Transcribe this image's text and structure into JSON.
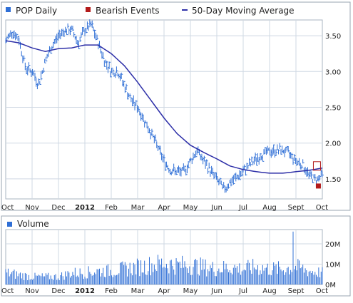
{
  "chart_data": [
    {
      "type": "line",
      "panel": "price",
      "legend": [
        {
          "label": "POP Daily",
          "marker": "square",
          "color": "#2f6fd6"
        },
        {
          "label": "Bearish Events",
          "marker": "square",
          "color": "#b31b1b"
        },
        {
          "label": "50-Day Moving Average",
          "marker": "line",
          "color": "#2d2fa8"
        }
      ],
      "x_tick_labels": [
        "Oct",
        "Nov",
        "Dec",
        "2012",
        "Feb",
        "Mar",
        "Apr",
        "May",
        "Jun",
        "Jul",
        "Aug",
        "Sept",
        "Oct"
      ],
      "y_tick_labels": [
        "1.50",
        "2.00",
        "2.50",
        "3.00",
        "3.50"
      ],
      "ylim": [
        1.22,
        3.72
      ],
      "grid": true,
      "colors": {
        "price": "#2f6fd6",
        "moving_average": "#2d2fa8",
        "bearish": "#b31b1b",
        "grid": "#cfd8e3"
      },
      "series": [
        {
          "name": "POP Daily",
          "style": "ohlc-bars",
          "x": [
            0,
            0.25,
            0.5,
            0.75,
            1,
            1.25,
            1.5,
            1.75,
            2,
            2.25,
            2.5,
            2.75,
            3,
            3.25,
            3.5,
            3.75,
            4,
            4.25,
            4.5,
            4.75,
            5,
            5.25,
            5.5,
            5.75,
            6,
            6.25,
            6.5,
            6.75,
            7,
            7.25,
            7.5,
            7.75,
            8,
            8.25,
            8.5,
            8.75,
            9,
            9.25,
            9.5,
            9.75,
            10,
            10.25,
            10.5,
            10.75,
            11,
            11.25,
            11.5,
            11.75,
            12
          ],
          "values": [
            3.42,
            3.57,
            3.45,
            3.05,
            3.0,
            2.82,
            3.15,
            3.35,
            3.5,
            3.58,
            3.58,
            3.4,
            3.58,
            3.65,
            3.4,
            3.15,
            3.0,
            3.0,
            2.8,
            2.6,
            2.5,
            2.32,
            2.15,
            1.95,
            1.75,
            1.62,
            1.6,
            1.6,
            1.75,
            1.9,
            1.75,
            1.62,
            1.5,
            1.35,
            1.45,
            1.52,
            1.6,
            1.7,
            1.78,
            1.85,
            1.88,
            1.9,
            1.9,
            1.85,
            1.75,
            1.7,
            1.55,
            1.48,
            1.55
          ]
        },
        {
          "name": "50-Day Moving Average",
          "style": "line",
          "x": [
            0,
            0.5,
            1,
            1.5,
            2,
            2.5,
            3,
            3.5,
            4,
            4.5,
            5,
            5.5,
            6,
            6.5,
            7,
            7.5,
            8,
            8.5,
            9,
            9.5,
            10,
            10.5,
            11,
            11.5,
            12
          ],
          "values": [
            3.43,
            3.4,
            3.33,
            3.28,
            3.32,
            3.33,
            3.37,
            3.37,
            3.25,
            3.08,
            2.85,
            2.6,
            2.35,
            2.13,
            1.97,
            1.87,
            1.78,
            1.68,
            1.63,
            1.6,
            1.58,
            1.58,
            1.6,
            1.62,
            1.65
          ]
        }
      ],
      "bearish_events": [
        {
          "x": 11.85,
          "y": 1.4
        }
      ]
    },
    {
      "type": "bar",
      "panel": "volume",
      "legend": [
        {
          "label": "Volume",
          "marker": "square",
          "color": "#2f6fd6"
        }
      ],
      "x_tick_labels": [
        "Oct",
        "Nov",
        "Dec",
        "2012",
        "Feb",
        "Mar",
        "Apr",
        "May",
        "Jun",
        "Jul",
        "Aug",
        "Sept",
        "Oct"
      ],
      "y_tick_labels": [
        "0M",
        "10M",
        "20M"
      ],
      "ylim": [
        0,
        27
      ],
      "grid": true,
      "colors": {
        "bars": "#2f6fd6"
      },
      "x": [
        0,
        0.5,
        1,
        1.5,
        2,
        2.5,
        3,
        3.5,
        4,
        4.5,
        5,
        5.5,
        6,
        6.5,
        7,
        7.5,
        8,
        8.5,
        9,
        9.5,
        10,
        10.5,
        11,
        11.5,
        12
      ],
      "values": [
        6,
        5,
        4,
        4,
        4,
        6,
        6,
        7,
        7,
        8,
        9,
        10,
        11,
        10,
        10,
        9,
        8,
        9,
        8,
        9,
        8,
        8,
        9,
        7,
        6
      ],
      "peak": {
        "x": 10.9,
        "value": 26
      }
    }
  ]
}
